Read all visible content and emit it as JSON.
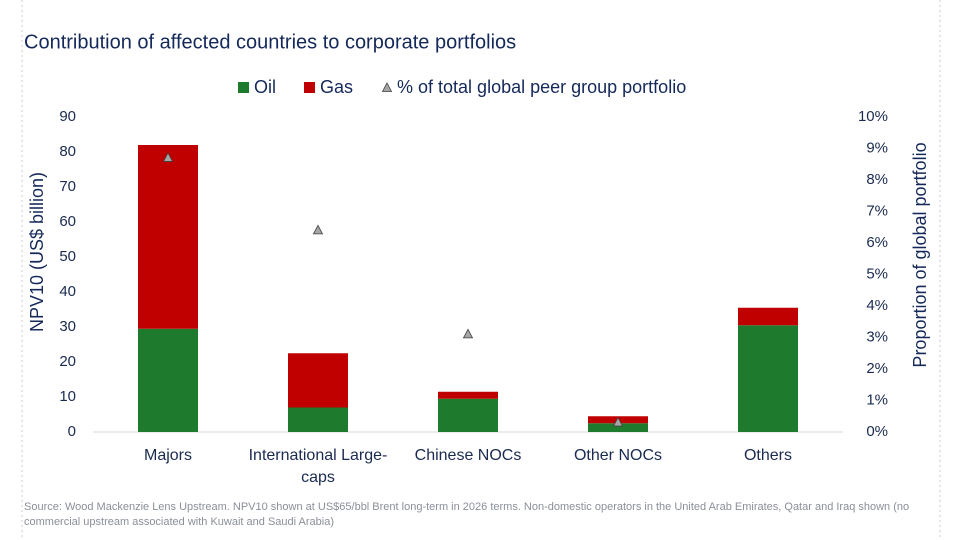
{
  "chart_data": {
    "type": "bar",
    "title": "Contribution of affected countries to corporate portfolios",
    "categories": [
      "Majors",
      "International Large-caps",
      "Chinese NOCs",
      "Other NOCs",
      "Others"
    ],
    "series": [
      {
        "name": "Oil",
        "color": "#1e7b2e",
        "values": [
          29.5,
          7,
          9.5,
          2.5,
          30.5
        ]
      },
      {
        "name": "Gas",
        "color": "#c00000",
        "values": [
          52.5,
          15.5,
          2,
          2,
          5
        ]
      },
      {
        "name": "% of total global peer group portfolio",
        "color": "#a6a6a6",
        "axis": "y2",
        "values": [
          8.7,
          6.4,
          3.1,
          0.3,
          null
        ]
      }
    ],
    "ylabel": "NPV10 (US$ billion)",
    "y2label": "Proportion of global portfolio",
    "ylim": [
      0,
      90
    ],
    "yticks": [
      0,
      10,
      20,
      30,
      40,
      50,
      60,
      70,
      80,
      90
    ],
    "y2lim": [
      0,
      10
    ],
    "y2ticks": [
      {
        "value": 0,
        "label": "0%"
      },
      {
        "value": 1,
        "label": "1%"
      },
      {
        "value": 2,
        "label": "2%"
      },
      {
        "value": 3,
        "label": "3%"
      },
      {
        "value": 4,
        "label": "4%"
      },
      {
        "value": 5,
        "label": "5%"
      },
      {
        "value": 6,
        "label": "6%"
      },
      {
        "value": 7,
        "label": "7%"
      },
      {
        "value": 8,
        "label": "8%"
      },
      {
        "value": 9,
        "label": "9%"
      },
      {
        "value": 10,
        "label": "10%"
      }
    ],
    "stacked": true,
    "source": "Source: Wood Mackenzie Lens Upstream. NPV10 shown at US$65/bbl Brent long-term in 2026 terms. Non-domestic operators in the United Arab Emirates, Qatar and Iraq shown (no commercial upstream associated with Kuwait and Saudi Arabia)"
  }
}
